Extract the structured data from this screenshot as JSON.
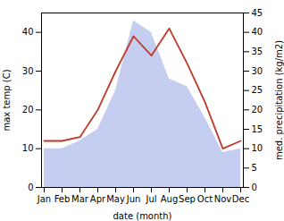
{
  "chart_data": {
    "type": "line",
    "xlabel": "date (month)",
    "ylabel": "max temp (C)",
    "y2label": "med. precipitation (kg/m2)",
    "categories": [
      "Jan",
      "Feb",
      "Mar",
      "Apr",
      "May",
      "Jun",
      "Jul",
      "Aug",
      "Sep",
      "Oct",
      "Nov",
      "Dec"
    ],
    "series": [
      {
        "type": "area",
        "axis": "y2",
        "color": "#c5cef0",
        "values": [
          10,
          10,
          12,
          15,
          25,
          43,
          40,
          28,
          26,
          18,
          9,
          10
        ]
      },
      {
        "type": "line",
        "color": "#c0392b",
        "values": [
          12,
          12,
          13,
          20,
          30,
          39,
          34,
          41,
          32,
          22,
          10,
          12
        ]
      }
    ],
    "ylim": [
      0,
      45
    ],
    "yticks": [
      0,
      10,
      20,
      30,
      40
    ],
    "y2lim": [
      0,
      45
    ],
    "y2ticks": [
      0,
      5,
      10,
      15,
      20,
      25,
      30,
      35,
      40,
      45
    ]
  }
}
